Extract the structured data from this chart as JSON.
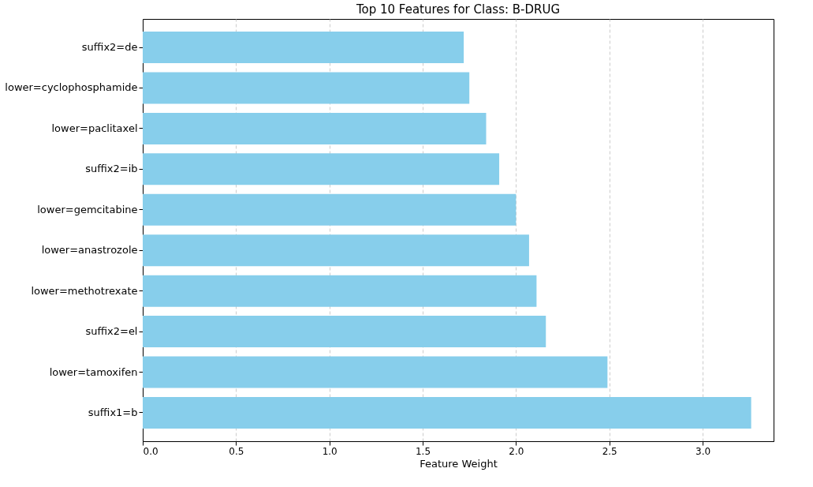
{
  "chart_data": {
    "type": "bar",
    "orientation": "horizontal",
    "title": "Top 10 Features for Class: B-DRUG",
    "xlabel": "Feature Weight",
    "categories": [
      "suffix2=de",
      "lower=cyclophosphamide",
      "lower=paclitaxel",
      "suffix2=ib",
      "lower=gemcitabine",
      "lower=anastrozole",
      "lower=methotrexate",
      "suffix2=el",
      "lower=tamoxifen",
      "suffix1=b"
    ],
    "values": [
      1.72,
      1.75,
      1.84,
      1.91,
      2.0,
      2.07,
      2.11,
      2.16,
      2.49,
      3.26
    ],
    "color": "#87ceeb",
    "xlim": [
      0,
      3.38
    ],
    "xticks": [
      {
        "value": 0,
        "label": "0.0"
      },
      {
        "value": 0.5,
        "label": "0.5"
      },
      {
        "value": 1,
        "label": "1.0"
      },
      {
        "value": 1.5,
        "label": "1.5"
      },
      {
        "value": 2,
        "label": "2.0"
      },
      {
        "value": 2.5,
        "label": "2.5"
      },
      {
        "value": 3,
        "label": "3.0"
      }
    ],
    "grid": "x",
    "line_style": "dashed"
  }
}
